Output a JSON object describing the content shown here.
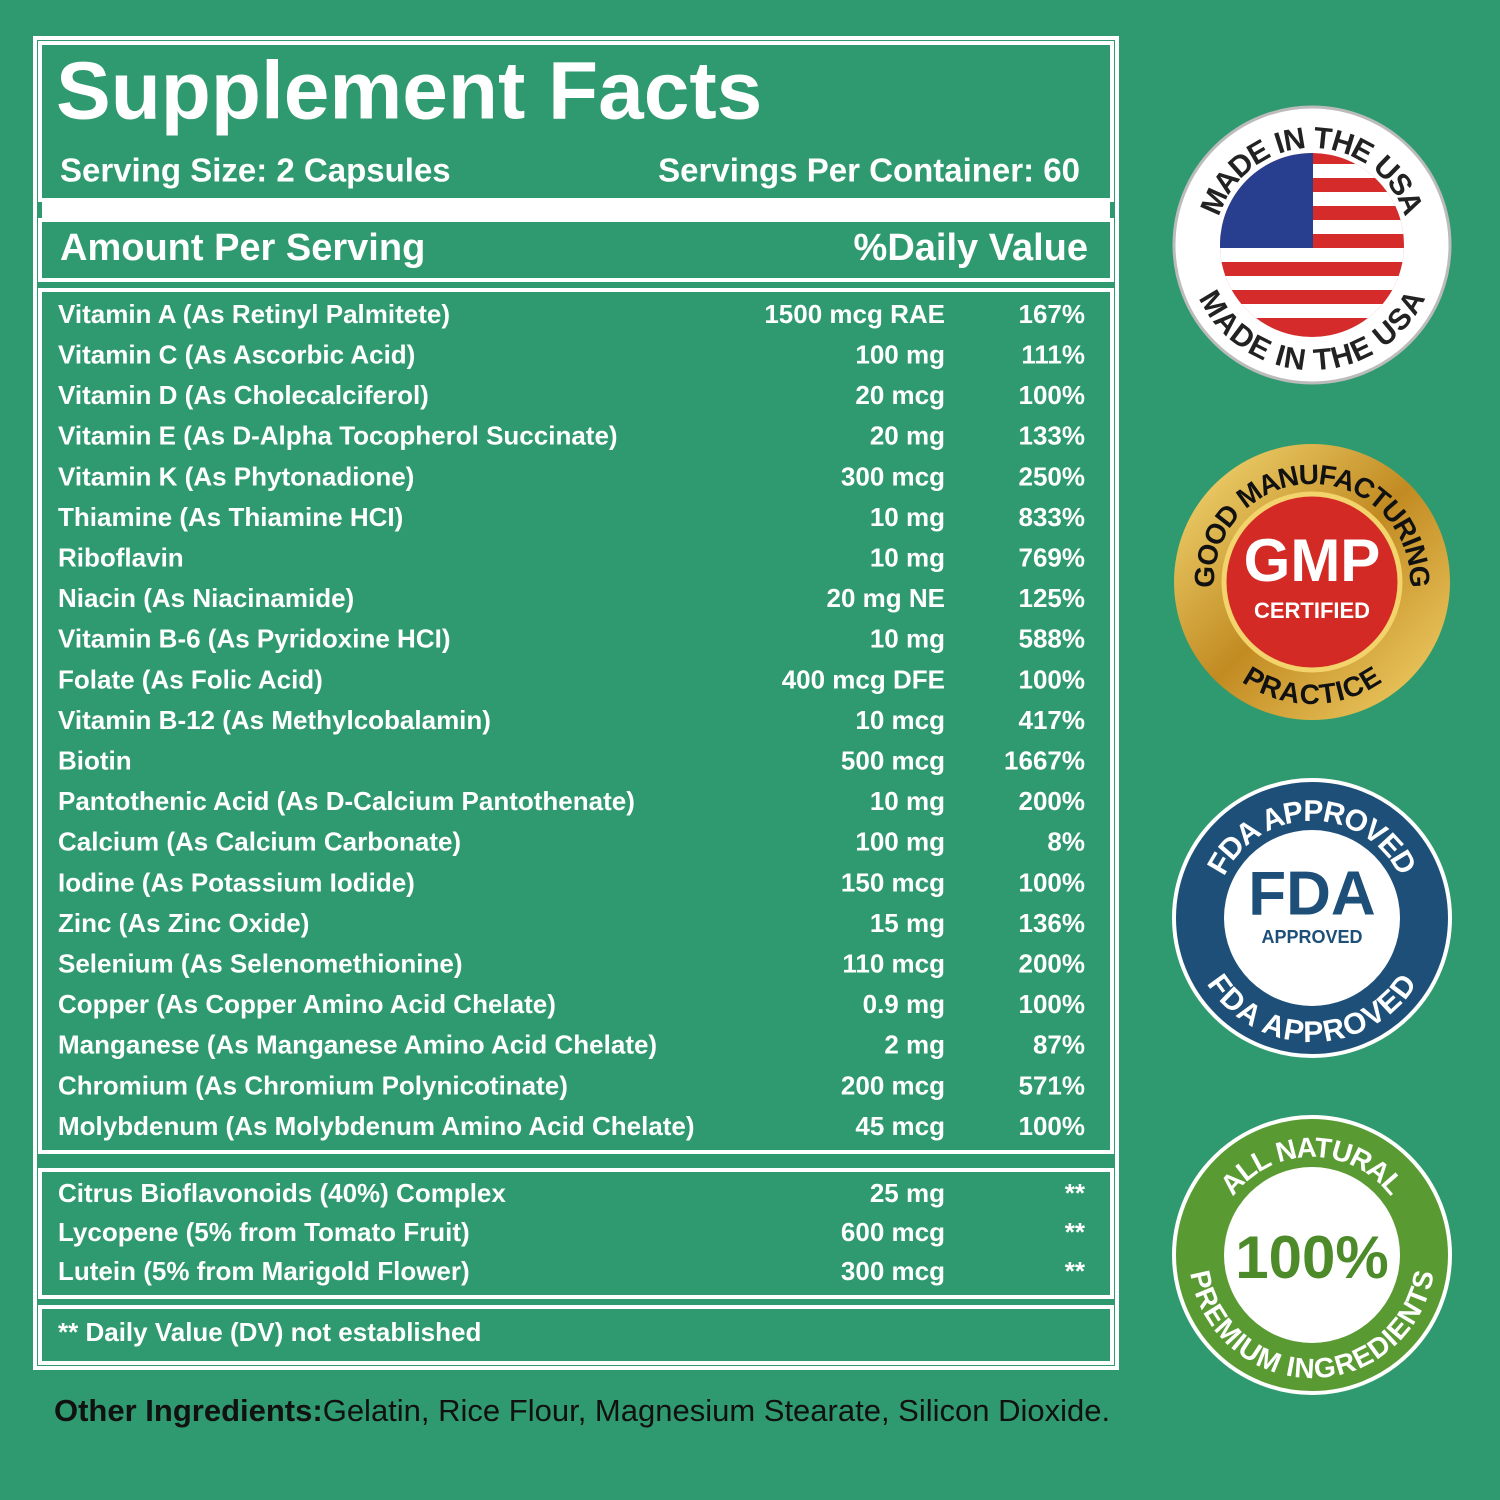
{
  "panel": {
    "title": "Supplement Facts",
    "serving_size": "Serving Size: 2 Capsules",
    "servings_per_container": "Servings Per Container: 60",
    "header": {
      "amount": "Amount Per Serving",
      "daily_value": "%Daily Value"
    },
    "rows": [
      [
        "Vitamin A (As Retinyl Palmitete)",
        "1500 mcg RAE",
        "167%"
      ],
      [
        "Vitamin C (As Ascorbic Acid)",
        "100 mg",
        "111%"
      ],
      [
        "Vitamin D (As Cholecalciferol)",
        "20 mcg",
        "100%"
      ],
      [
        "Vitamin E (As D-Alpha Tocopherol Succinate)",
        "20 mg",
        "133%"
      ],
      [
        "Vitamin K (As Phytonadione)",
        "300 mcg",
        "250%"
      ],
      [
        "Thiamine (As Thiamine HCI)",
        "10 mg",
        "833%"
      ],
      [
        "Riboflavin",
        "10 mg",
        "769%"
      ],
      [
        "Niacin (As Niacinamide)",
        "20 mg NE",
        "125%"
      ],
      [
        "Vitamin B-6 (As Pyridoxine HCI)",
        "10 mg",
        "588%"
      ],
      [
        "Folate (As Folic Acid)",
        "400 mcg DFE",
        "100%"
      ],
      [
        "Vitamin B-12 (As Methylcobalamin)",
        "10 mcg",
        "417%"
      ],
      [
        "Biotin",
        "500 mcg",
        "1667%"
      ],
      [
        "Pantothenic Acid (As D-Calcium Pantothenate)",
        "10 mg",
        "200%"
      ],
      [
        "Calcium (As Calcium Carbonate)",
        "100 mg",
        "8%"
      ],
      [
        "Iodine (As Potassium Iodide)",
        "150 mcg",
        "100%"
      ],
      [
        "Zinc (As Zinc Oxide)",
        "15 mg",
        "136%"
      ],
      [
        "Selenium (As Selenomethionine)",
        "110 mcg",
        "200%"
      ],
      [
        "Copper (As Copper Amino Acid Chelate)",
        "0.9 mg",
        "100%"
      ],
      [
        "Manganese (As Manganese Amino Acid Chelate)",
        "2 mg",
        "87%"
      ],
      [
        "Chromium (As Chromium Polynicotinate)",
        "200 mcg",
        "571%"
      ],
      [
        "Molybdenum (As Molybdenum Amino Acid Chelate)",
        "45 mcg",
        "100%"
      ]
    ],
    "other_rows": [
      [
        "Citrus Bioflavonoids (40%) Complex",
        "25 mg",
        "**"
      ],
      [
        "Lycopene (5% from Tomato Fruit)",
        "600 mcg",
        "**"
      ],
      [
        "Lutein (5% from Marigold Flower)",
        "300 mcg",
        "**"
      ]
    ],
    "footnote": "** Daily Value (DV) not established"
  },
  "other_ingredients": {
    "label": "Other Ingredients:",
    "text": "Gelatin, Rice Flour, Magnesium Stearate, Silicon Dioxide."
  },
  "badges": {
    "usa": {
      "top": "MADE IN THE USA",
      "bottom": "MADE IN THE USA"
    },
    "gmp": {
      "top": "GOOD MANUFACTURING",
      "center": "GMP",
      "sub": "CERTIFIED",
      "bottom": "PRACTICE"
    },
    "fda": {
      "top": "FDA APPROVED",
      "center": "FDA",
      "sub": "APPROVED",
      "bottom": "FDA APPROVED"
    },
    "natural": {
      "top": "ALL NATURAL",
      "center": "100%",
      "bottom": "PREMIUM INGREDIENTS"
    }
  }
}
